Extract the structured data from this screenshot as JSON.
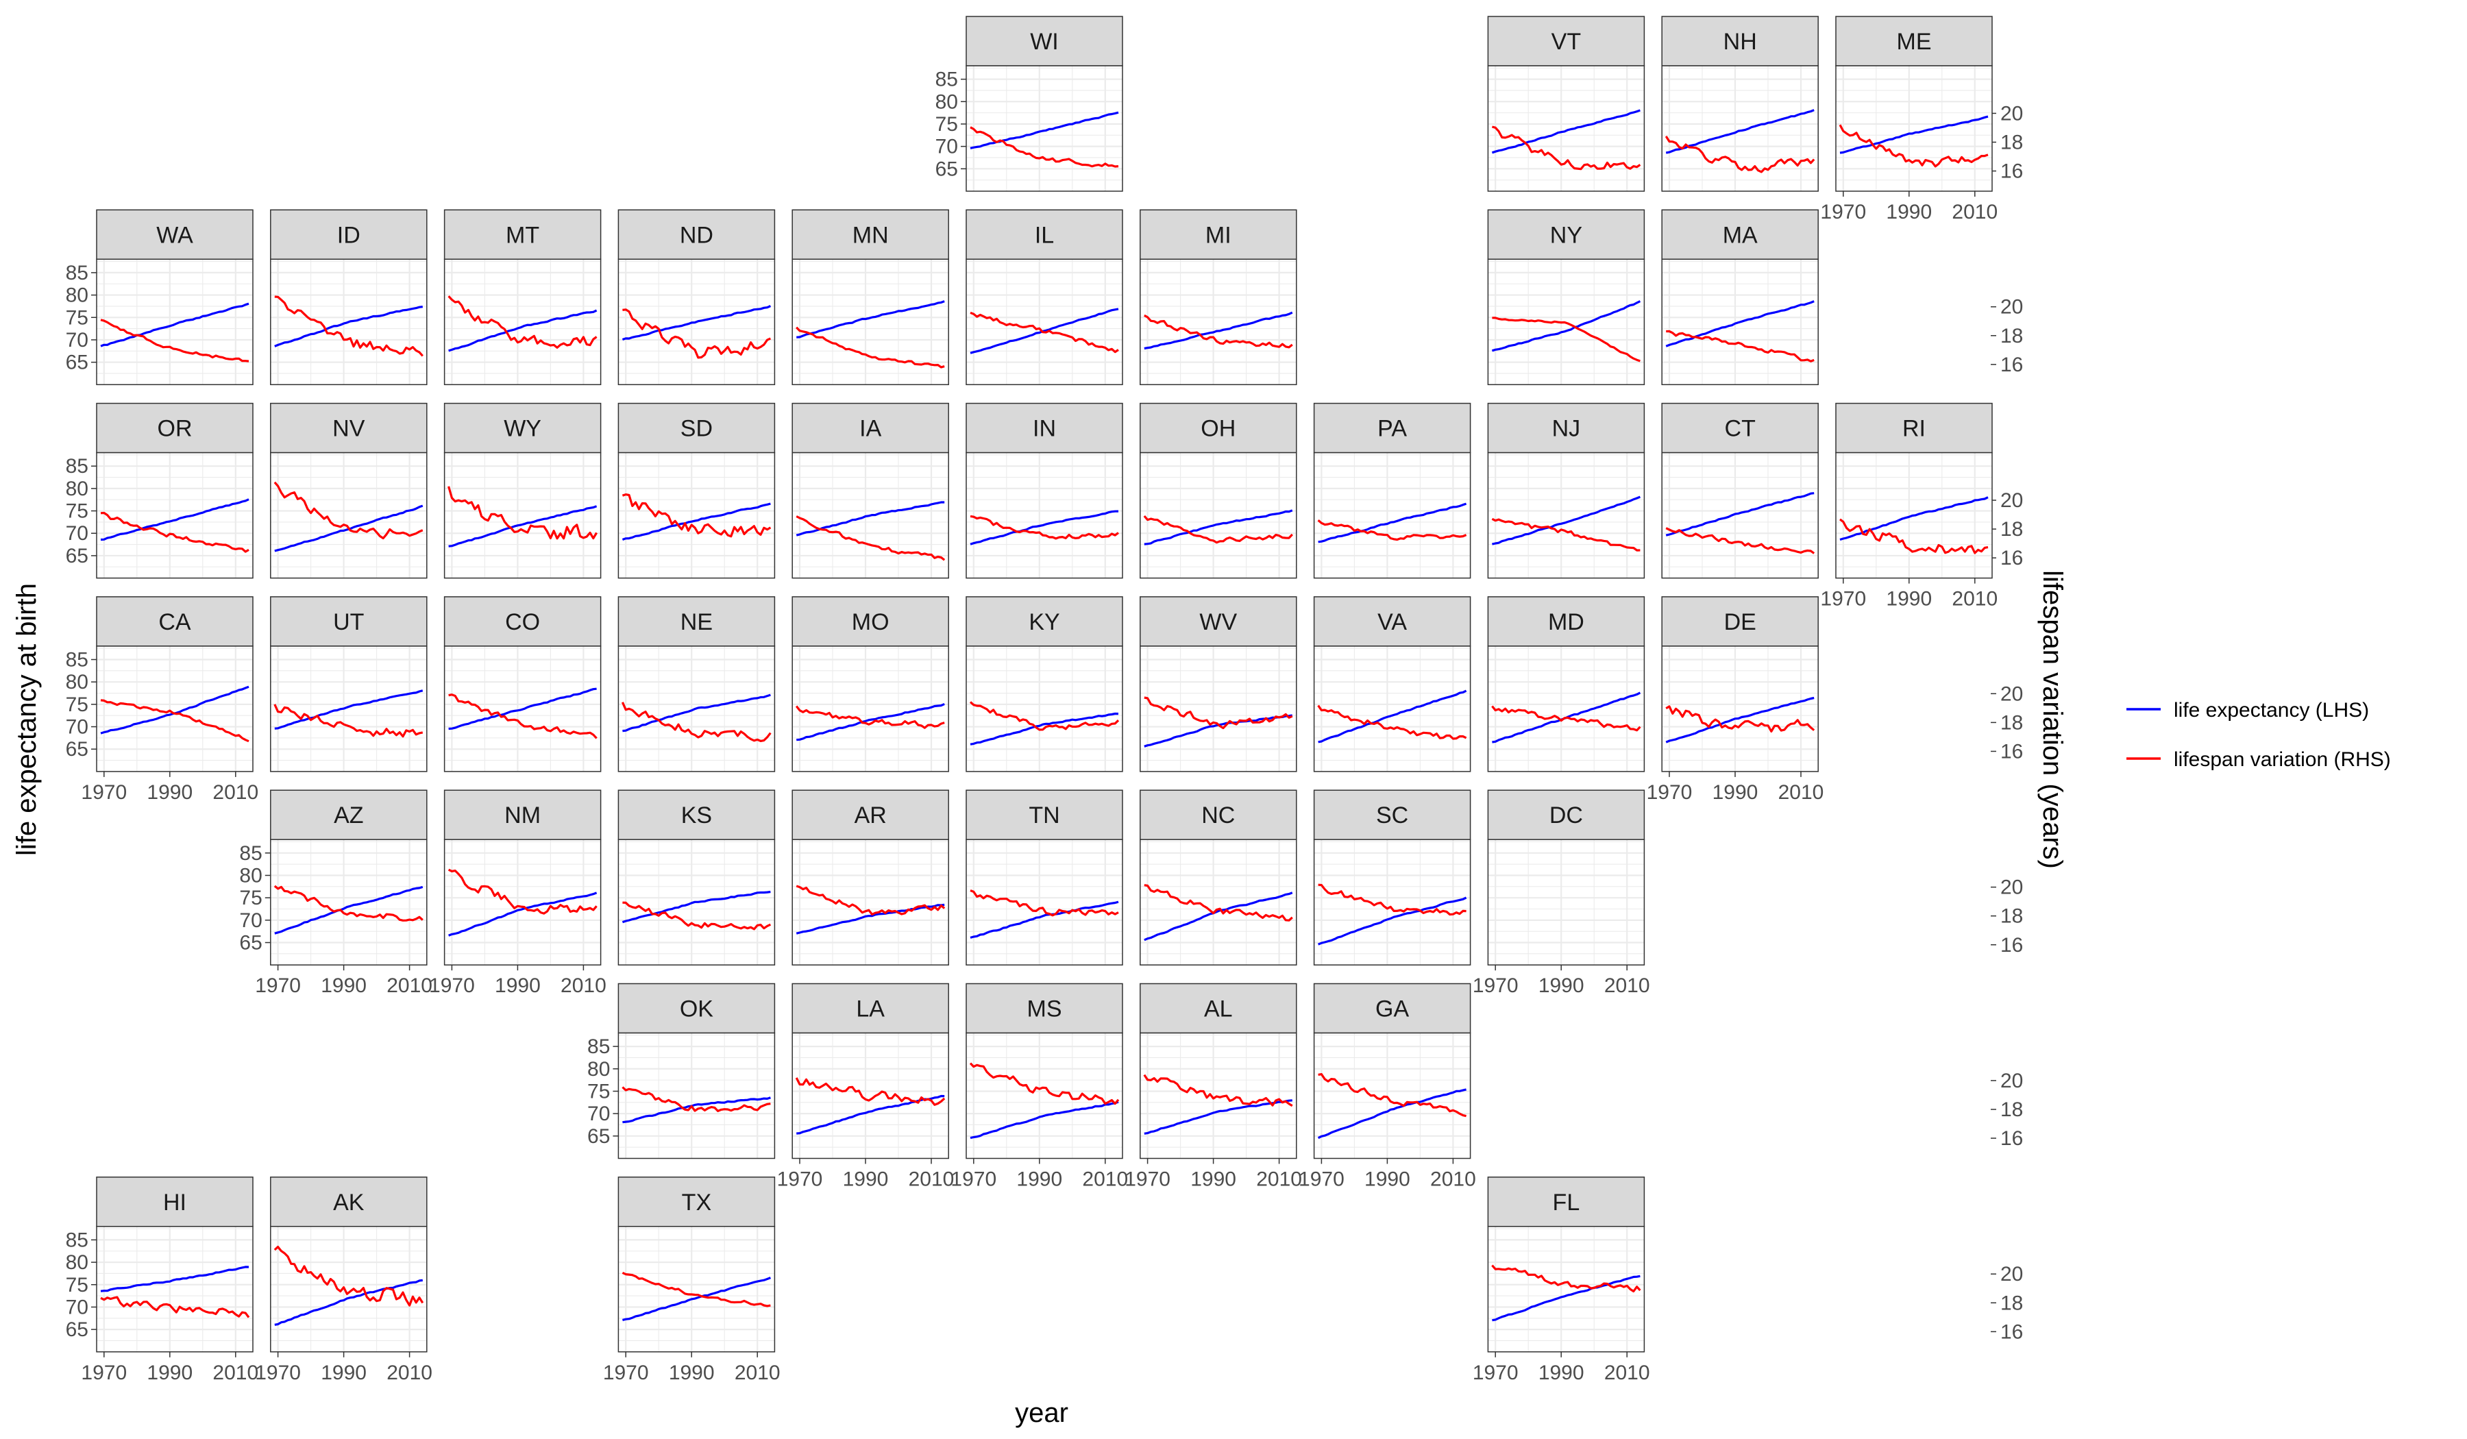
{
  "chart_data": {
    "type": "line",
    "facet": "geofacet",
    "x_label": "year",
    "y_label_left": "life expectancy at birth",
    "y_label_right": "lifespan variation (years)",
    "x_range": [
      1969,
      2014
    ],
    "x_ticks": [
      1970,
      1990,
      2010
    ],
    "y_left_range": [
      60,
      88
    ],
    "y_left_ticks": [
      65,
      70,
      75,
      80,
      85
    ],
    "y_right_range": [
      14.6,
      23.3
    ],
    "y_right_ticks": [
      16,
      18,
      20
    ],
    "grid": true,
    "legend_position": "right",
    "legend": [
      {
        "label": "life expectancy (LHS)",
        "color": "#0000ff"
      },
      {
        "label": "lifespan variation (RHS)",
        "color": "#ff0000"
      }
    ],
    "colors": {
      "life_expectancy": "#0000ff",
      "lifespan_variation": "#ff0000",
      "strip_fill": "#d9d9d9"
    },
    "states": [
      {
        "label": "WI",
        "row": 0,
        "col": 5,
        "le": [
          69.5,
          73.5,
          77.5
        ],
        "lv": [
          18.9,
          16.8,
          16.3
        ],
        "noise": 0.15
      },
      {
        "label": "VT",
        "row": 0,
        "col": 8,
        "le": [
          68.5,
          73.5,
          78.0
        ],
        "lv": [
          18.8,
          16.5,
          16.4
        ],
        "noise": 0.3
      },
      {
        "label": "NH",
        "row": 0,
        "col": 9,
        "le": [
          68.5,
          73.5,
          78.0
        ],
        "lv": [
          18.2,
          16.2,
          16.6
        ],
        "noise": 0.3
      },
      {
        "label": "ME",
        "row": 0,
        "col": 10,
        "le": [
          68.5,
          73.0,
          76.5
        ],
        "lv": [
          19.0,
          16.5,
          16.8
        ],
        "noise": 0.3
      },
      {
        "label": "WA",
        "row": 1,
        "col": 0,
        "le": [
          68.5,
          73.5,
          78.0
        ],
        "lv": [
          19.0,
          17.0,
          16.2
        ],
        "noise": 0.1
      },
      {
        "label": "ID",
        "row": 1,
        "col": 1,
        "le": [
          68.5,
          74.0,
          77.5
        ],
        "lv": [
          20.5,
          17.5,
          17.0
        ],
        "noise": 0.35
      },
      {
        "label": "MT",
        "row": 1,
        "col": 2,
        "le": [
          67.5,
          73.0,
          76.5
        ],
        "lv": [
          20.5,
          17.6,
          17.6
        ],
        "noise": 0.35
      },
      {
        "label": "ND",
        "row": 1,
        "col": 3,
        "le": [
          70.0,
          74.0,
          77.5
        ],
        "lv": [
          19.5,
          16.8,
          17.4
        ],
        "noise": 0.4
      },
      {
        "label": "MN",
        "row": 1,
        "col": 4,
        "le": [
          70.5,
          75.0,
          78.5
        ],
        "lv": [
          18.5,
          16.5,
          15.8
        ],
        "noise": 0.1
      },
      {
        "label": "IL",
        "row": 1,
        "col": 5,
        "le": [
          67.0,
          72.0,
          77.0
        ],
        "lv": [
          19.5,
          18.3,
          16.9
        ],
        "noise": 0.15
      },
      {
        "label": "MI",
        "row": 1,
        "col": 6,
        "le": [
          68.0,
          72.0,
          76.0
        ],
        "lv": [
          19.3,
          17.6,
          17.3
        ],
        "noise": 0.15
      },
      {
        "label": "NY",
        "row": 1,
        "col": 8,
        "le": [
          67.5,
          72.0,
          78.5
        ],
        "lv": [
          19.2,
          18.9,
          16.2
        ],
        "noise": 0.05
      },
      {
        "label": "MA",
        "row": 1,
        "col": 9,
        "le": [
          68.5,
          74.0,
          78.5
        ],
        "lv": [
          18.2,
          17.4,
          16.2
        ],
        "noise": 0.15
      },
      {
        "label": "OR",
        "row": 2,
        "col": 0,
        "le": [
          68.5,
          73.0,
          77.5
        ],
        "lv": [
          19.0,
          17.5,
          16.5
        ],
        "noise": 0.15
      },
      {
        "label": "NV",
        "row": 2,
        "col": 1,
        "le": [
          66.0,
          71.0,
          76.0
        ],
        "lv": [
          21.0,
          18.0,
          17.6
        ],
        "noise": 0.35
      },
      {
        "label": "WY",
        "row": 2,
        "col": 2,
        "le": [
          67.0,
          72.0,
          76.0
        ],
        "lv": [
          20.5,
          17.8,
          17.8
        ],
        "noise": 0.5
      },
      {
        "label": "SD",
        "row": 2,
        "col": 3,
        "le": [
          68.5,
          73.0,
          76.5
        ],
        "lv": [
          20.0,
          18.0,
          17.9
        ],
        "noise": 0.4
      },
      {
        "label": "IA",
        "row": 2,
        "col": 4,
        "le": [
          69.5,
          74.0,
          77.0
        ],
        "lv": [
          18.8,
          16.8,
          16.0
        ],
        "noise": 0.15
      },
      {
        "label": "IN",
        "row": 2,
        "col": 5,
        "le": [
          67.5,
          72.0,
          75.0
        ],
        "lv": [
          18.8,
          17.5,
          17.6
        ],
        "noise": 0.15
      },
      {
        "label": "OH",
        "row": 2,
        "col": 6,
        "le": [
          67.5,
          72.0,
          75.0
        ],
        "lv": [
          18.8,
          17.2,
          17.6
        ],
        "noise": 0.15
      },
      {
        "label": "PA",
        "row": 2,
        "col": 7,
        "le": [
          68.0,
          72.5,
          76.5
        ],
        "lv": [
          18.5,
          17.4,
          17.5
        ],
        "noise": 0.15
      },
      {
        "label": "NJ",
        "row": 2,
        "col": 8,
        "le": [
          67.5,
          72.5,
          78.0
        ],
        "lv": [
          18.6,
          17.8,
          16.4
        ],
        "noise": 0.15
      },
      {
        "label": "CT",
        "row": 2,
        "col": 9,
        "le": [
          69.5,
          74.5,
          79.0
        ],
        "lv": [
          18.0,
          17.0,
          16.4
        ],
        "noise": 0.15
      },
      {
        "label": "RI",
        "row": 2,
        "col": 10,
        "le": [
          68.5,
          74.0,
          78.0
        ],
        "lv": [
          18.4,
          16.8,
          16.5
        ],
        "noise": 0.35
      },
      {
        "label": "CA",
        "row": 3,
        "col": 0,
        "le": [
          68.5,
          73.0,
          79.0
        ],
        "lv": [
          19.5,
          18.7,
          16.8
        ],
        "noise": 0.1
      },
      {
        "label": "UT",
        "row": 3,
        "col": 1,
        "le": [
          69.5,
          74.5,
          78.0
        ],
        "lv": [
          19.0,
          17.5,
          17.2
        ],
        "noise": 0.3
      },
      {
        "label": "CO",
        "row": 3,
        "col": 2,
        "le": [
          69.5,
          74.0,
          78.5
        ],
        "lv": [
          19.8,
          17.8,
          17.0
        ],
        "noise": 0.2
      },
      {
        "label": "NE",
        "row": 3,
        "col": 3,
        "le": [
          69.0,
          74.0,
          77.0
        ],
        "lv": [
          19.2,
          17.3,
          17.1
        ],
        "noise": 0.3
      },
      {
        "label": "MO",
        "row": 3,
        "col": 4,
        "le": [
          67.0,
          71.5,
          75.0
        ],
        "lv": [
          19.0,
          18.0,
          17.8
        ],
        "noise": 0.2
      },
      {
        "label": "KY",
        "row": 3,
        "col": 5,
        "le": [
          66.0,
          70.5,
          73.0
        ],
        "lv": [
          19.3,
          17.6,
          18.0
        ],
        "noise": 0.2
      },
      {
        "label": "WV",
        "row": 3,
        "col": 6,
        "le": [
          65.5,
          70.5,
          72.5
        ],
        "lv": [
          19.5,
          17.8,
          18.4
        ],
        "noise": 0.25
      },
      {
        "label": "VA",
        "row": 3,
        "col": 7,
        "le": [
          66.5,
          72.5,
          78.0
        ],
        "lv": [
          19.0,
          17.5,
          16.8
        ],
        "noise": 0.2
      },
      {
        "label": "MD",
        "row": 3,
        "col": 8,
        "le": [
          66.5,
          72.0,
          77.5
        ],
        "lv": [
          19.0,
          18.2,
          17.6
        ],
        "noise": 0.2
      },
      {
        "label": "DE",
        "row": 3,
        "col": 9,
        "le": [
          66.5,
          72.0,
          76.5
        ],
        "lv": [
          18.8,
          17.6,
          17.8
        ],
        "noise": 0.4
      },
      {
        "label": "AZ",
        "row": 4,
        "col": 1,
        "le": [
          67.0,
          73.0,
          77.5
        ],
        "lv": [
          20.0,
          18.2,
          17.8
        ],
        "noise": 0.2
      },
      {
        "label": "NM",
        "row": 4,
        "col": 2,
        "le": [
          66.5,
          72.5,
          76.0
        ],
        "lv": [
          21.0,
          18.5,
          18.5
        ],
        "noise": 0.3
      },
      {
        "label": "KS",
        "row": 4,
        "col": 3,
        "le": [
          69.5,
          74.0,
          76.5
        ],
        "lv": [
          18.8,
          17.4,
          17.2
        ],
        "noise": 0.2
      },
      {
        "label": "AR",
        "row": 4,
        "col": 4,
        "le": [
          67.0,
          71.0,
          73.5
        ],
        "lv": [
          20.0,
          18.2,
          18.6
        ],
        "noise": 0.2
      },
      {
        "label": "TN",
        "row": 4,
        "col": 5,
        "le": [
          66.0,
          71.0,
          74.0
        ],
        "lv": [
          19.6,
          18.3,
          18.2
        ],
        "noise": 0.2
      },
      {
        "label": "NC",
        "row": 4,
        "col": 6,
        "le": [
          65.5,
          72.0,
          76.0
        ],
        "lv": [
          20.0,
          18.3,
          17.8
        ],
        "noise": 0.2
      },
      {
        "label": "SC",
        "row": 4,
        "col": 7,
        "le": [
          64.5,
          70.5,
          75.0
        ],
        "lv": [
          20.0,
          18.5,
          18.2
        ],
        "noise": 0.2
      },
      {
        "label": "DC",
        "row": 4,
        "col": 8
      },
      {
        "label": "OK",
        "row": 5,
        "col": 3,
        "le": [
          68.0,
          72.0,
          73.5
        ],
        "lv": [
          19.4,
          18.0,
          18.2
        ],
        "noise": 0.2
      },
      {
        "label": "LA",
        "row": 5,
        "col": 4,
        "le": [
          65.5,
          70.5,
          74.0
        ],
        "lv": [
          20.0,
          19.0,
          18.5
        ],
        "noise": 0.3
      },
      {
        "label": "MS",
        "row": 5,
        "col": 5,
        "le": [
          64.5,
          69.5,
          72.5
        ],
        "lv": [
          21.0,
          19.2,
          18.5
        ],
        "noise": 0.3
      },
      {
        "label": "AL",
        "row": 5,
        "col": 6,
        "le": [
          65.5,
          70.5,
          73.0
        ],
        "lv": [
          20.3,
          18.7,
          18.4
        ],
        "noise": 0.25
      },
      {
        "label": "GA",
        "row": 5,
        "col": 7,
        "le": [
          64.5,
          71.0,
          75.5
        ],
        "lv": [
          20.3,
          18.6,
          17.8
        ],
        "noise": 0.2
      },
      {
        "label": "HI",
        "row": 6,
        "col": 0,
        "le": [
          73.5,
          76.0,
          79.0
        ],
        "lv": [
          18.2,
          17.6,
          17.2
        ],
        "noise": 0.25
      },
      {
        "label": "AK",
        "row": 6,
        "col": 1,
        "le": [
          66.0,
          72.0,
          76.0
        ],
        "lv": [
          21.5,
          18.8,
          18.2
        ],
        "noise": 0.45
      },
      {
        "label": "TX",
        "row": 6,
        "col": 3,
        "le": [
          67.0,
          72.0,
          76.5
        ],
        "lv": [
          20.0,
          18.5,
          17.8
        ],
        "noise": 0.1
      },
      {
        "label": "FL",
        "row": 6,
        "col": 8,
        "le": [
          67.0,
          72.5,
          77.0
        ],
        "lv": [
          20.5,
          19.3,
          19.0
        ],
        "noise": 0.2
      }
    ]
  }
}
